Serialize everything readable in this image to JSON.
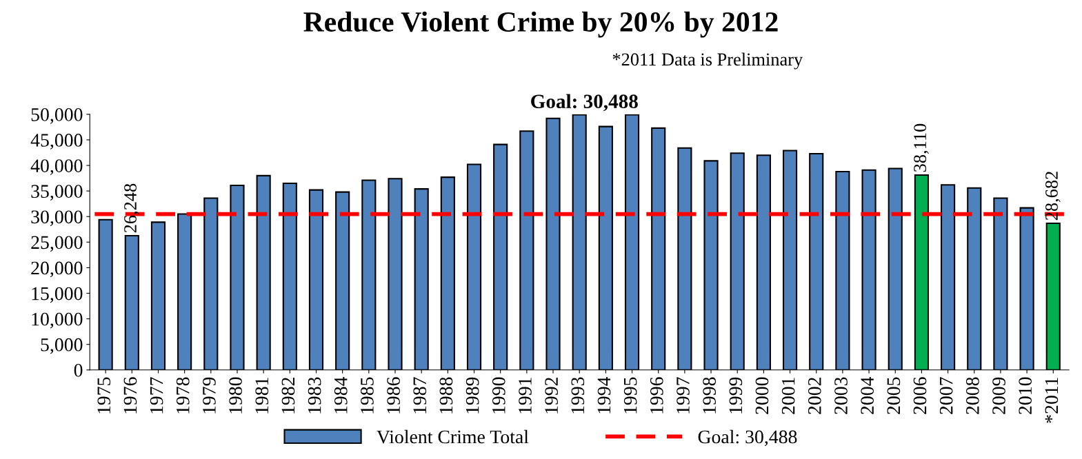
{
  "chart_data": {
    "type": "bar",
    "title": "Reduce Violent Crime by 20% by 2012",
    "subtitle": "*2011 Data is Preliminary",
    "annotations": [
      "Goal: 30,488"
    ],
    "categories": [
      "1975",
      "1976",
      "1977",
      "1978",
      "1979",
      "1980",
      "1981",
      "1982",
      "1983",
      "1984",
      "1985",
      "1986",
      "1987",
      "1988",
      "1989",
      "1990",
      "1991",
      "1992",
      "1993",
      "1994",
      "1995",
      "1996",
      "1997",
      "1998",
      "1999",
      "2000",
      "2001",
      "2002",
      "2003",
      "2004",
      "2005",
      "2006",
      "2007",
      "2008",
      "2009",
      "2010",
      "*2011"
    ],
    "series": [
      {
        "name": "Violent Crime Total",
        "color": "#4f81bd",
        "colors": [
          "#4f81bd",
          "#4f81bd",
          "#4f81bd",
          "#4f81bd",
          "#4f81bd",
          "#4f81bd",
          "#4f81bd",
          "#4f81bd",
          "#4f81bd",
          "#4f81bd",
          "#4f81bd",
          "#4f81bd",
          "#4f81bd",
          "#4f81bd",
          "#4f81bd",
          "#4f81bd",
          "#4f81bd",
          "#4f81bd",
          "#4f81bd",
          "#4f81bd",
          "#4f81bd",
          "#4f81bd",
          "#4f81bd",
          "#4f81bd",
          "#4f81bd",
          "#4f81bd",
          "#4f81bd",
          "#4f81bd",
          "#4f81bd",
          "#4f81bd",
          "#4f81bd",
          "#00b050",
          "#4f81bd",
          "#4f81bd",
          "#4f81bd",
          "#4f81bd",
          "#00b050"
        ],
        "values": [
          29400,
          26248,
          28900,
          30500,
          33600,
          36100,
          38000,
          36500,
          35200,
          34800,
          37100,
          37400,
          35400,
          37700,
          40200,
          44100,
          46700,
          49200,
          49900,
          47600,
          49900,
          47300,
          43400,
          40900,
          42400,
          42000,
          42900,
          42300,
          38800,
          39100,
          39400,
          38110,
          36200,
          35600,
          33600,
          31700,
          28682
        ],
        "value_labels": [
          null,
          "26,248",
          null,
          null,
          null,
          null,
          null,
          null,
          null,
          null,
          null,
          null,
          null,
          null,
          null,
          null,
          null,
          null,
          null,
          null,
          null,
          null,
          null,
          null,
          null,
          null,
          null,
          null,
          null,
          null,
          null,
          "38,110",
          null,
          null,
          null,
          null,
          "28,682"
        ]
      }
    ],
    "ylim": [
      0,
      50000
    ],
    "yticks": [
      0,
      {
        "value": 5000,
        "label": "5,000"
      },
      {
        "value": 10000,
        "label": "10,000"
      },
      {
        "value": 15000,
        "label": "15,000"
      },
      {
        "value": 20000,
        "label": "20,000"
      },
      {
        "value": 25000,
        "label": "25,000"
      },
      {
        "value": 30000,
        "label": "30,000"
      },
      {
        "value": 35000,
        "label": "35,000"
      },
      {
        "value": 40000,
        "label": "40,000"
      },
      {
        "value": 45000,
        "label": "45,000"
      },
      {
        "value": 50000,
        "label": "50,000"
      }
    ],
    "ref_lines": [
      {
        "axis": "y",
        "value": 30488,
        "label": "Goal: 30,488",
        "color": "#ff0000",
        "line_style": "dashed"
      }
    ],
    "grid": false,
    "legend": "bottom"
  }
}
